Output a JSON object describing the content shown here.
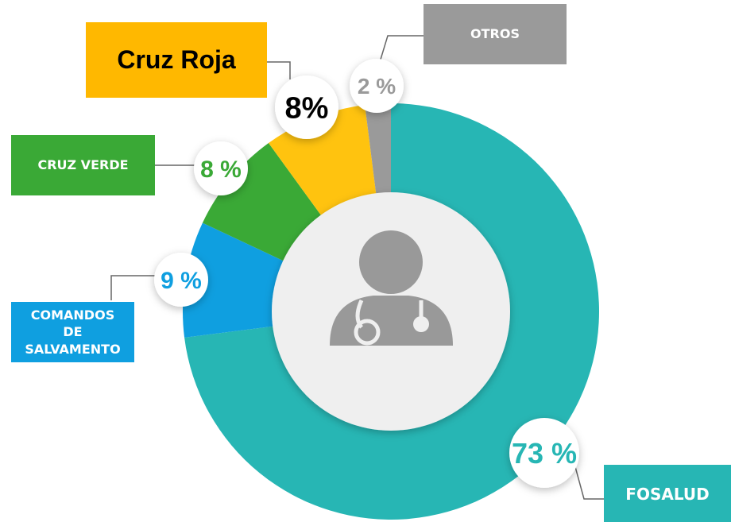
{
  "chart_data": {
    "type": "pie",
    "donut": true,
    "categories": [
      "FOSALUD",
      "COMANDOS DE SALVAMENTO",
      "CRUZ VERDE",
      "Cruz Roja",
      "OTROS"
    ],
    "values": [
      73,
      9,
      8,
      8,
      2
    ],
    "value_labels": [
      "73 %",
      "9 %",
      "8 %",
      "8%",
      "2 %"
    ],
    "colors": [
      "#27b6b4",
      "#0f9fe0",
      "#3aa936",
      "#ffc30f",
      "#9a9a9a"
    ]
  }
}
